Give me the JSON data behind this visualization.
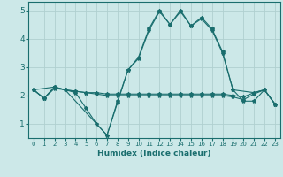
{
  "xlabel": "Humidex (Indice chaleur)",
  "bg_color": "#cce8e8",
  "grid_color": "#b0d0d0",
  "line_color": "#1a6e6e",
  "xlim": [
    -0.5,
    23.5
  ],
  "ylim": [
    0.5,
    5.3
  ],
  "yticks": [
    1,
    2,
    3,
    4,
    5
  ],
  "xticks": [
    0,
    1,
    2,
    3,
    4,
    5,
    6,
    7,
    8,
    9,
    10,
    11,
    12,
    13,
    14,
    15,
    16,
    17,
    18,
    19,
    20,
    21,
    22,
    23
  ],
  "series": [
    {
      "x": [
        0,
        1,
        2,
        3,
        4,
        5,
        6,
        7,
        8,
        9,
        10,
        11,
        12,
        13,
        14,
        15,
        16,
        17,
        18,
        19,
        20,
        21,
        22,
        23
      ],
      "y": [
        2.2,
        1.9,
        2.3,
        2.2,
        2.1,
        1.55,
        1.0,
        0.6,
        1.8,
        2.9,
        3.35,
        4.35,
        5.0,
        4.5,
        5.0,
        4.45,
        4.75,
        4.35,
        3.55,
        2.2,
        1.8,
        1.8,
        2.2,
        1.7
      ]
    },
    {
      "x": [
        0,
        1,
        2,
        3,
        4,
        5,
        6,
        7,
        8,
        9,
        10,
        11,
        12,
        13,
        14,
        15,
        16,
        17,
        18,
        19,
        20,
        21,
        22,
        23
      ],
      "y": [
        2.2,
        1.9,
        2.3,
        2.2,
        2.15,
        2.1,
        2.1,
        2.05,
        2.05,
        2.05,
        2.05,
        2.05,
        2.05,
        2.05,
        2.05,
        2.05,
        2.05,
        2.05,
        2.05,
        2.0,
        1.95,
        2.1,
        2.2,
        1.7
      ]
    },
    {
      "x": [
        0,
        1,
        2,
        3,
        4,
        5,
        6,
        7,
        8,
        9,
        10,
        11,
        12,
        13,
        14,
        15,
        16,
        17,
        18,
        19,
        20,
        21,
        22,
        23
      ],
      "y": [
        2.2,
        1.9,
        2.25,
        2.2,
        2.15,
        2.1,
        2.05,
        2.0,
        2.0,
        2.0,
        2.0,
        2.0,
        2.0,
        2.0,
        2.0,
        2.0,
        2.0,
        2.0,
        2.0,
        1.95,
        1.85,
        2.05,
        2.2,
        1.7
      ]
    },
    {
      "x": [
        0,
        2,
        3,
        7,
        8,
        9,
        10,
        11,
        12,
        13,
        14,
        15,
        16,
        17,
        18,
        19,
        21,
        22,
        23
      ],
      "y": [
        2.2,
        2.3,
        2.2,
        0.6,
        1.75,
        2.9,
        3.3,
        4.3,
        4.95,
        4.5,
        4.95,
        4.45,
        4.7,
        4.3,
        3.5,
        2.2,
        2.1,
        2.2,
        1.7
      ]
    }
  ]
}
